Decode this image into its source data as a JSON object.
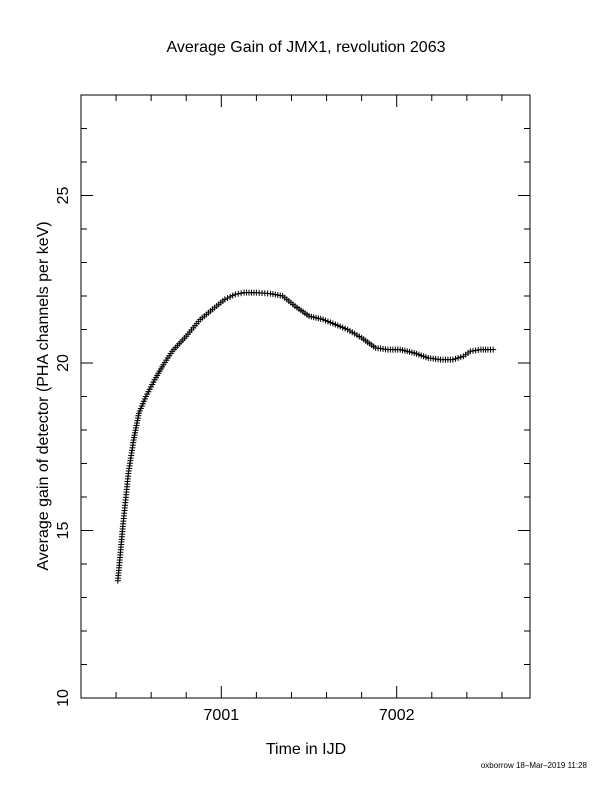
{
  "chart_data": {
    "type": "scatter",
    "title": "Average Gain of JMX1, revolution 2063",
    "xlabel": "Time in IJD",
    "ylabel": "Average gain of detector (PHA channels per keV)",
    "xlim": [
      7000.2,
      7002.76
    ],
    "ylim": [
      10,
      28
    ],
    "x_major_ticks": [
      7001,
      7002
    ],
    "x_tick_labels": [
      "7001",
      "7002"
    ],
    "x_minor_step": 0.2,
    "y_major_ticks": [
      10,
      15,
      20,
      25
    ],
    "y_tick_labels": [
      "10",
      "15",
      "20",
      "25"
    ],
    "y_minor_step": 1,
    "grid": false,
    "marker": "plus",
    "series": [
      {
        "name": "",
        "color": "#000000",
        "x": [
          7000.41,
          7000.44,
          7000.47,
          7000.5,
          7000.53,
          7000.57,
          7000.62,
          7000.67,
          7000.72,
          7000.8,
          7000.88,
          7000.95,
          7001.02,
          7001.08,
          7001.13,
          7001.2,
          7001.28,
          7001.35,
          7001.42,
          7001.5,
          7001.58,
          7001.65,
          7001.72,
          7001.8,
          7001.88,
          7001.95,
          7002.02,
          7002.1,
          7002.18,
          7002.25,
          7002.32,
          7002.38,
          7002.42,
          7002.48,
          7002.52,
          7002.55
        ],
        "y": [
          13.5,
          15.2,
          16.7,
          17.7,
          18.5,
          19.0,
          19.5,
          19.95,
          20.35,
          20.8,
          21.3,
          21.6,
          21.9,
          22.05,
          22.1,
          22.1,
          22.07,
          22.0,
          21.7,
          21.4,
          21.3,
          21.15,
          21.0,
          20.75,
          20.45,
          20.4,
          20.4,
          20.3,
          20.15,
          20.1,
          20.1,
          20.2,
          20.35,
          20.4,
          20.4,
          20.4
        ]
      }
    ]
  },
  "footer": {
    "stamp": "oxborrow 18–Mar–2019 11:28"
  }
}
